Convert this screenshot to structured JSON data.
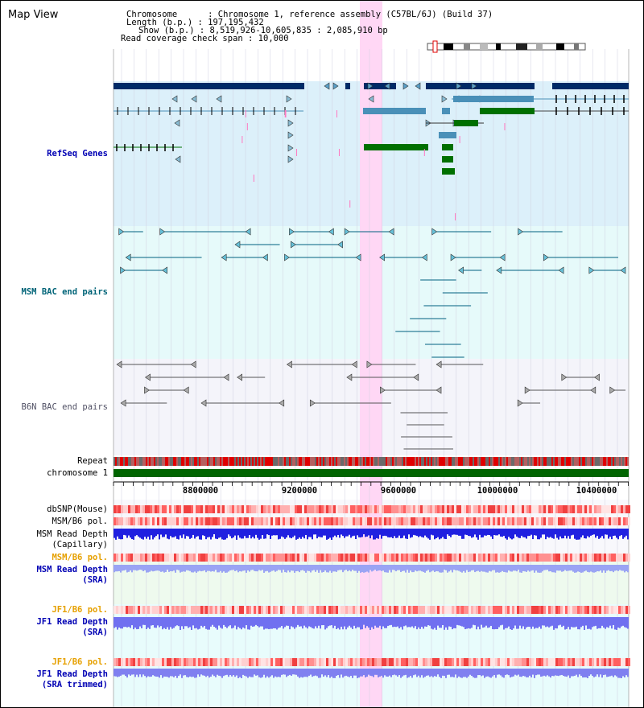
{
  "view": {
    "title": "Map View"
  },
  "info": {
    "chromosome": "Chromosome      : Chromosome 1, reference assembly (C57BL/6J) (Build 37)",
    "length": "Length (b.p.) : 197,195,432",
    "show": "Show (b.p.) : 8,519,926-10,605,835 : 2,085,910 bp",
    "span": "Read coverage check span : 10,000"
  },
  "tracks": {
    "refseq": "RefSeq Genes",
    "msm_bac": "MSM BAC end pairs",
    "b6n_bac": "B6N BAC end pairs",
    "repeat": "Repeat",
    "chromosome": "chromosome 1",
    "dbsnp": "dbSNP(Mouse)",
    "msm_pol": "MSM/B6 pol.",
    "msm_depth_cap_1": "MSM Read Depth",
    "msm_depth_cap_2": "(Capillary)",
    "msm_pol_sra": "MSM/B6 pol.",
    "msm_depth_sra_1": "MSM Read Depth",
    "msm_depth_sra_2": "(SRA)",
    "jf1_pol": "JF1/B6 pol.",
    "jf1_depth_1": "JF1 Read Depth",
    "jf1_depth_2": "(SRA)",
    "jf1_pol_trim": "JF1/B6 pol.",
    "jf1_trim_1": "JF1 Read Depth",
    "jf1_trim_2": "(SRA trimmed)"
  },
  "axis": {
    "ticks": [
      "8800000",
      "9200000",
      "9600000",
      "10000000",
      "10400000"
    ]
  },
  "colors": {
    "refseq_bg": "#dcf0fa",
    "msm_bg": "#e6fafa",
    "b6n_bg": "#f4f4fa",
    "highlight": "#ffd7f5",
    "label_blue": "#0000b4",
    "label_teal": "#006478",
    "label_gray": "#505064",
    "label_orange": "#e6a000"
  }
}
